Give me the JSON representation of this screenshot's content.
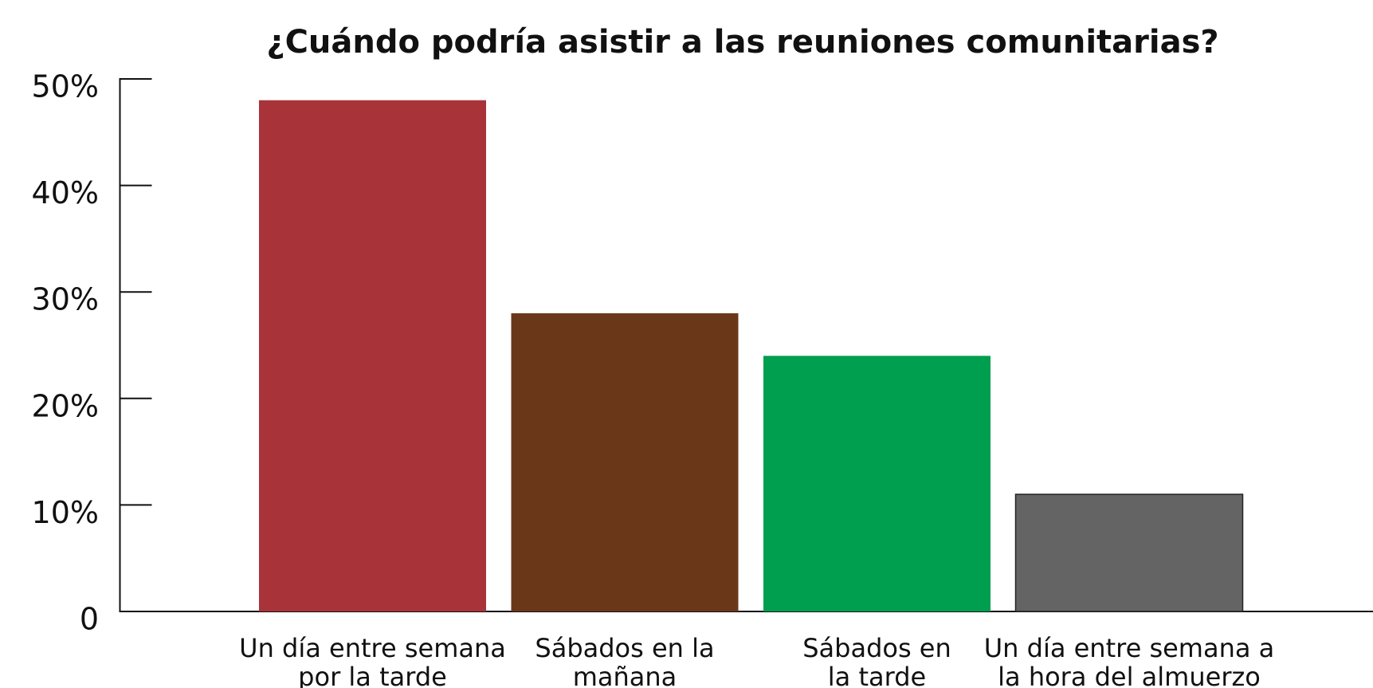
{
  "chart_data": {
    "type": "bar",
    "title": "¿Cuándo podría asistir a las reuniones comunitarias?",
    "categories": [
      [
        "Un día entre semana",
        "por la tarde"
      ],
      [
        "Sábados en la",
        "mañana"
      ],
      [
        "Sábados en",
        "la tarde"
      ],
      [
        "Un día entre semana a",
        "la hora del almuerzo"
      ]
    ],
    "values": [
      48,
      28,
      24,
      11
    ],
    "colors": [
      "#a8343a",
      "#6a3718",
      "#009e4f",
      "#646464"
    ],
    "ylim": [
      0,
      50
    ],
    "yticks": [
      0,
      {
        "value": 10,
        "label": "10%"
      },
      {
        "value": 20,
        "label": "20%"
      },
      {
        "value": 30,
        "label": "30%"
      },
      {
        "value": 40,
        "label": "40%"
      },
      {
        "value": 50,
        "label": "50%"
      }
    ],
    "grid": false
  }
}
